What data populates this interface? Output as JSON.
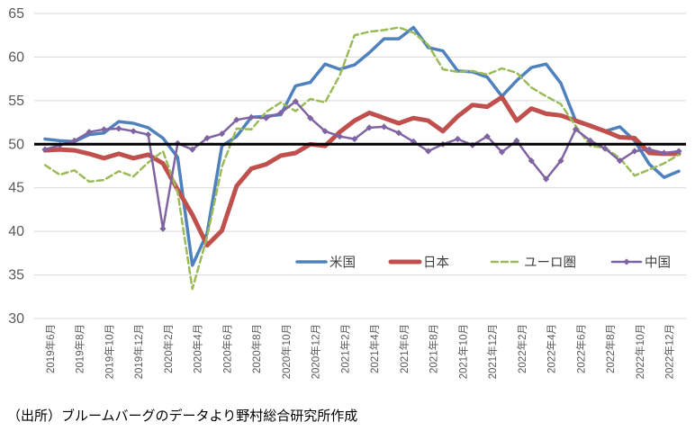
{
  "caption": "（出所）ブルームバーグのデータより野村総合研究所作成",
  "chart_data": {
    "type": "line",
    "title": "",
    "xlabel": "",
    "ylabel": "",
    "ylim": [
      30,
      65
    ],
    "yticks": [
      30,
      35,
      40,
      45,
      50,
      55,
      60,
      65
    ],
    "grid": true,
    "grid_color": "#d9d9d9",
    "axis_label_color": "#595959",
    "legend_text_color": "#404040",
    "reference_line": {
      "value": 50,
      "color": "#000000",
      "width": 3
    },
    "legend_position": "bottom-inside",
    "tick_every": 2,
    "categories": [
      "2019年6月",
      "2019年7月",
      "2019年8月",
      "2019年9月",
      "2019年10月",
      "2019年11月",
      "2019年12月",
      "2020年1月",
      "2020年2月",
      "2020年3月",
      "2020年4月",
      "2020年5月",
      "2020年6月",
      "2020年7月",
      "2020年8月",
      "2020年9月",
      "2020年10月",
      "2020年11月",
      "2020年12月",
      "2021年1月",
      "2021年2月",
      "2021年3月",
      "2021年4月",
      "2021年5月",
      "2021年6月",
      "2021年7月",
      "2021年8月",
      "2021年9月",
      "2021年10月",
      "2021年11月",
      "2021年12月",
      "2022年1月",
      "2022年2月",
      "2022年3月",
      "2022年4月",
      "2022年5月",
      "2022年6月",
      "2022年7月",
      "2022年8月",
      "2022年9月",
      "2022年10月",
      "2022年11月",
      "2022年12月",
      "2023年1月"
    ],
    "series": [
      {
        "key": "us",
        "name": "米国",
        "color": "#4F81BD",
        "width": 3.5,
        "dash": "",
        "markers": false,
        "values": [
          50.6,
          50.4,
          50.3,
          51.1,
          51.3,
          52.6,
          52.4,
          51.9,
          50.7,
          48.5,
          36.1,
          39.8,
          49.8,
          50.9,
          53.1,
          53.2,
          53.4,
          56.7,
          57.1,
          59.2,
          58.6,
          59.1,
          60.5,
          62.1,
          62.1,
          63.4,
          61.1,
          60.7,
          58.4,
          58.3,
          57.7,
          55.5,
          57.3,
          58.8,
          59.2,
          57.0,
          52.7,
          52.2,
          51.5,
          52.0,
          50.4,
          47.7,
          46.2,
          46.9
        ]
      },
      {
        "key": "japan",
        "name": "日本",
        "color": "#C0504D",
        "width": 5,
        "dash": "",
        "markers": false,
        "values": [
          49.3,
          49.4,
          49.3,
          48.9,
          48.4,
          48.9,
          48.4,
          48.8,
          47.8,
          44.8,
          41.9,
          38.4,
          40.1,
          45.2,
          47.2,
          47.7,
          48.7,
          49.0,
          50.0,
          49.8,
          51.4,
          52.7,
          53.6,
          53.0,
          52.4,
          53.0,
          52.7,
          51.5,
          53.2,
          54.5,
          54.3,
          55.4,
          52.7,
          54.1,
          53.5,
          53.3,
          52.7,
          52.1,
          51.5,
          50.8,
          50.7,
          49.0,
          48.9,
          48.9
        ]
      },
      {
        "key": "eurozone",
        "name": "ユーロ圏",
        "color": "#9BBB59",
        "width": 2.5,
        "dash": "7 4",
        "markers": false,
        "values": [
          47.6,
          46.5,
          47.0,
          45.7,
          45.9,
          46.9,
          46.3,
          47.9,
          49.2,
          44.5,
          33.4,
          39.4,
          47.4,
          51.8,
          51.7,
          53.7,
          54.8,
          53.8,
          55.2,
          54.8,
          57.9,
          62.5,
          62.9,
          63.1,
          63.4,
          62.8,
          61.4,
          58.6,
          58.3,
          58.4,
          58.0,
          58.7,
          58.2,
          56.5,
          55.5,
          54.6,
          52.1,
          49.8,
          49.6,
          48.4,
          46.4,
          47.1,
          47.8,
          48.8
        ]
      },
      {
        "key": "china",
        "name": "中国",
        "color": "#8064A2",
        "width": 2.5,
        "dash": "",
        "markers": true,
        "values": [
          49.4,
          49.9,
          50.4,
          51.4,
          51.7,
          51.8,
          51.5,
          51.1,
          40.3,
          50.1,
          49.4,
          50.7,
          51.2,
          52.8,
          53.1,
          53.0,
          53.6,
          54.9,
          53.0,
          51.5,
          50.9,
          50.6,
          51.9,
          52.0,
          51.3,
          50.3,
          49.2,
          50.0,
          50.6,
          49.9,
          50.9,
          49.1,
          50.4,
          48.1,
          46.0,
          48.1,
          51.7,
          50.4,
          49.5,
          48.1,
          49.2,
          49.4,
          49.0,
          49.2
        ]
      }
    ]
  }
}
